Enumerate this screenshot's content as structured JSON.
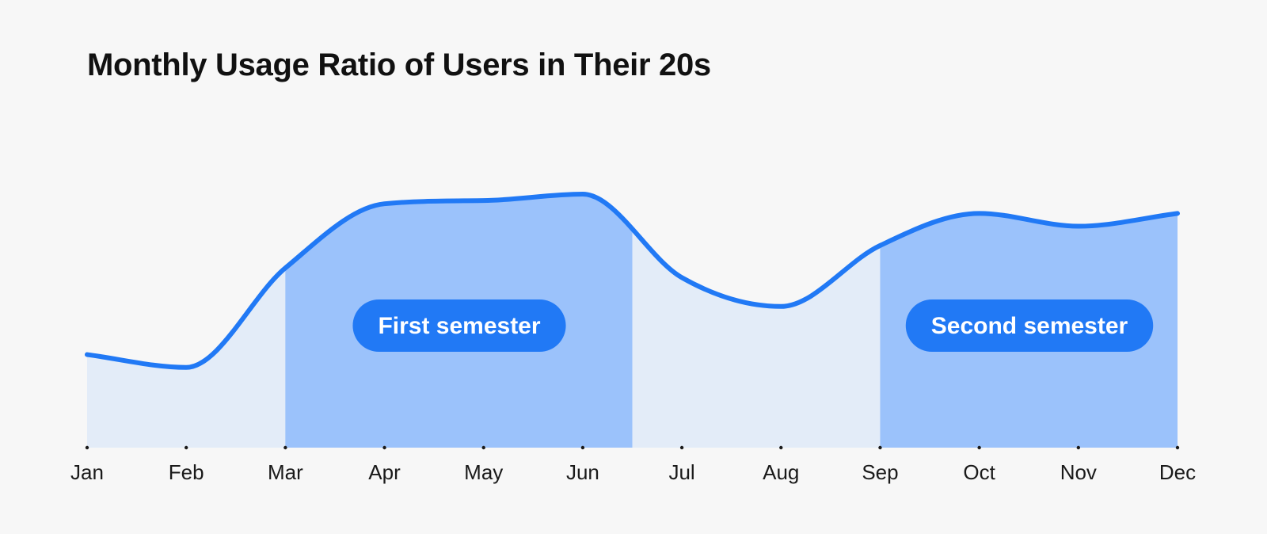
{
  "chart_data": {
    "type": "area",
    "title": "Monthly Usage Ratio of Users in Their 20s",
    "categories": [
      "Jan",
      "Feb",
      "Mar",
      "Apr",
      "May",
      "Jun",
      "Jul",
      "Aug",
      "Sep",
      "Oct",
      "Nov",
      "Dec"
    ],
    "series": [
      {
        "values": [
          29,
          25,
          56,
          76,
          77,
          79,
          53,
          44,
          63,
          73,
          69,
          73
        ]
      }
    ],
    "xlabel": "",
    "ylabel": "",
    "ylim": [
      0,
      100
    ],
    "grid": false,
    "legend": "none",
    "highlighted_ranges": [
      {
        "label": "First semester",
        "start": "Mar",
        "end": "Jun",
        "end_offset": 0.5
      },
      {
        "label": "Second semester",
        "start": "Sep",
        "end": "Dec",
        "end_offset": 0
      }
    ],
    "colors": {
      "line": "#2179f5",
      "area_light": "#e3ecf8",
      "area_highlight": "#9bc2fb",
      "pill": "#2179f5",
      "pill_text": "#ffffff",
      "tick_mark": "#1a1a1a"
    }
  }
}
